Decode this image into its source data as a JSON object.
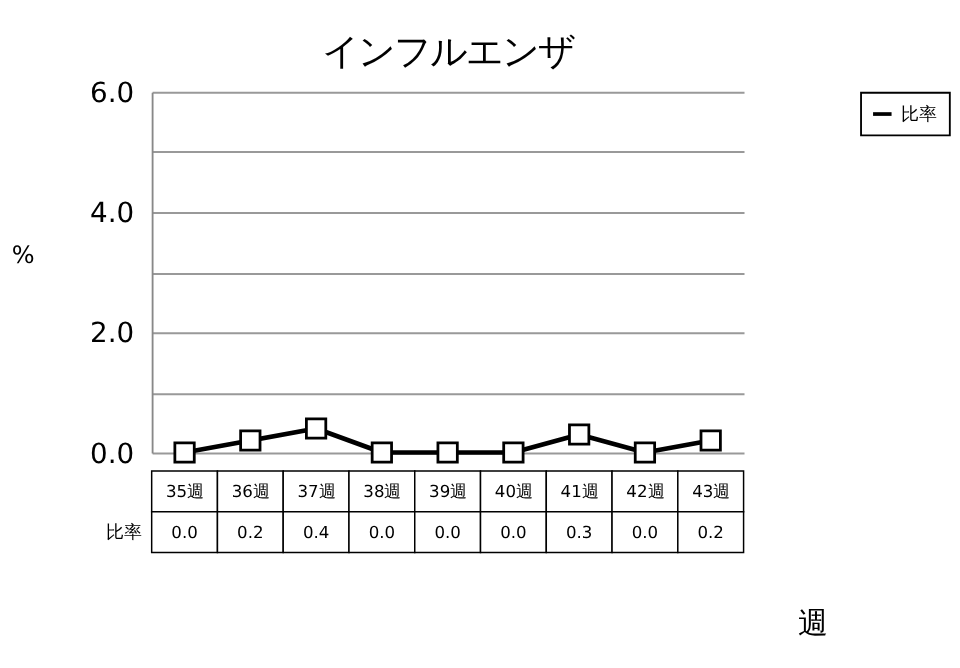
{
  "chart_data": {
    "type": "line",
    "title": "インフルエンザ",
    "ylabel": "%",
    "xlabel": "週",
    "categories": [
      "35週",
      "36週",
      "37週",
      "38週",
      "39週",
      "40週",
      "41週",
      "42週",
      "43週"
    ],
    "series": [
      {
        "name": "比率",
        "color": "#000000",
        "values": [
          0.0,
          0.2,
          0.4,
          0.0,
          0.0,
          0.0,
          0.3,
          0.0,
          0.2
        ],
        "value_labels": [
          "0.0",
          "0.2",
          "0.4",
          "0.0",
          "0.0",
          "0.0",
          "0.3",
          "0.0",
          "0.2"
        ]
      }
    ],
    "ylim": [
      0,
      6
    ],
    "yticks": [
      {
        "value": 0,
        "label": "0.0"
      },
      {
        "value": 1,
        "label": null
      },
      {
        "value": 2,
        "label": "2.0"
      },
      {
        "value": 3,
        "label": null
      },
      {
        "value": 4,
        "label": "4.0"
      },
      {
        "value": 5,
        "label": null
      },
      {
        "value": 6,
        "label": "6.0"
      }
    ],
    "grid": "y",
    "legend": "right",
    "marker": "square",
    "line_style": "solid"
  }
}
